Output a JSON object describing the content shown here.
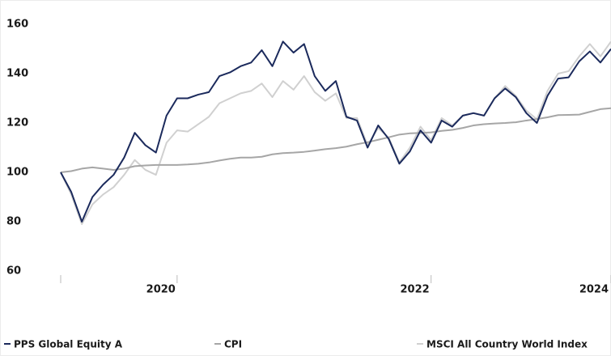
{
  "chart_data": {
    "type": "line",
    "categories": [
      null,
      null,
      null,
      null,
      null,
      null,
      null,
      null,
      null,
      null,
      null,
      "2020",
      null,
      null,
      null,
      null,
      null,
      null,
      null,
      null,
      null,
      null,
      null,
      null,
      null,
      null,
      null,
      null,
      null,
      null,
      null,
      null,
      null,
      null,
      null,
      "2022",
      null,
      null,
      null,
      null,
      null,
      null,
      null,
      null,
      null,
      null,
      null,
      null,
      null,
      null,
      null,
      null,
      "2024"
    ],
    "series": [
      {
        "name": "PPS Global Equity A",
        "color": "#1b2a5c",
        "values": [
          100,
          92,
          80,
          90,
          95,
          99,
          106,
          116,
          111,
          108,
          123,
          130,
          130,
          131.5,
          132.5,
          139,
          140.5,
          143,
          144.5,
          149.5,
          143,
          153,
          148.5,
          152,
          139,
          133,
          137,
          122.5,
          121,
          110,
          119,
          113.5,
          103.5,
          108.5,
          117,
          112,
          121,
          118.5,
          123,
          124,
          123,
          130,
          134,
          130.5,
          124,
          120,
          131,
          138,
          138.5,
          145,
          149,
          144.5,
          150
        ]
      },
      {
        "name": "CPI",
        "color": "#a6a6a6",
        "values": [
          100,
          100.5,
          101.5,
          102,
          101.5,
          101,
          101.5,
          102.5,
          102.8,
          103,
          103,
          103,
          103.2,
          103.5,
          104,
          104.8,
          105.5,
          106,
          106,
          106.3,
          107.3,
          107.8,
          108,
          108.3,
          108.8,
          109.4,
          109.8,
          110.4,
          111.4,
          112.2,
          113.2,
          114.2,
          115.3,
          115.8,
          116,
          116.2,
          116.8,
          117.2,
          118,
          119,
          119.5,
          119.8,
          120,
          120.3,
          121,
          121.6,
          122.3,
          123.2,
          123.3,
          123.4,
          124.5,
          125.6,
          126
        ]
      },
      {
        "name": "MSCI All Country World Index",
        "color": "#d0d0d0",
        "values": [
          100,
          91,
          79,
          87,
          91,
          94,
          99,
          105,
          101,
          99,
          112,
          117,
          116.5,
          119.5,
          122.5,
          128,
          130,
          132,
          133,
          136,
          130.5,
          137,
          133.5,
          139,
          132.5,
          129,
          132,
          122,
          122,
          111,
          118,
          114,
          104,
          110,
          118.5,
          113,
          122,
          119,
          123,
          124,
          123,
          130,
          135,
          131,
          125,
          121.5,
          133,
          140,
          141,
          147,
          152,
          147,
          153
        ]
      }
    ],
    "ylim": [
      60,
      160
    ],
    "yticks": [
      60,
      80,
      100,
      120,
      140,
      160
    ],
    "grid": false,
    "legend": "bottom"
  }
}
